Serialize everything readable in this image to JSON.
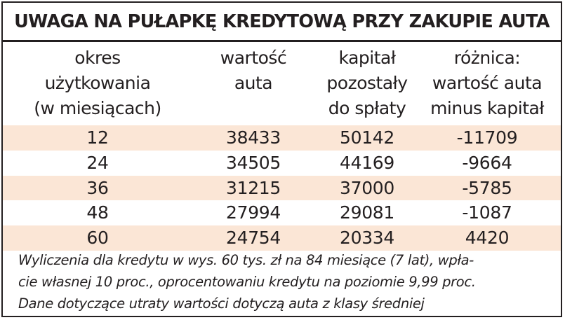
{
  "title": "UWAGA NA PUŁAPKĘ KREDYTOWĄ PRZY ZAKUPIE AUTA",
  "columns": [
    "okres\nużytkowania\n(w miesiącach)",
    "wartość\nauta",
    "kapitał\npozostały\ndo spłaty",
    "różnica:\nwartość auta\nminus kapitał"
  ],
  "rows": [
    [
      "12",
      "38433",
      "50142",
      "-11709"
    ],
    [
      "24",
      "34505",
      "44169",
      "-9664"
    ],
    [
      "36",
      "31215",
      "37000",
      "-5785"
    ],
    [
      "48",
      "27994",
      "29081",
      "-1087"
    ],
    [
      "60",
      "24754",
      "20334",
      "4420"
    ]
  ],
  "notes": [
    "Wyliczenia dla kredytu w wys. 60 tys. zł na 84 miesiące (7 lat), wpła-",
    "cie własnej 10 proc., oprocentowaniu kredytu na poziomie 9,99 proc.",
    "Dane dotyczące utraty wartości dotyczą auta z klasy średniej"
  ],
  "colors": {
    "text": "#231f20",
    "row_shade": "#fbe6d6",
    "background": "#ffffff"
  }
}
